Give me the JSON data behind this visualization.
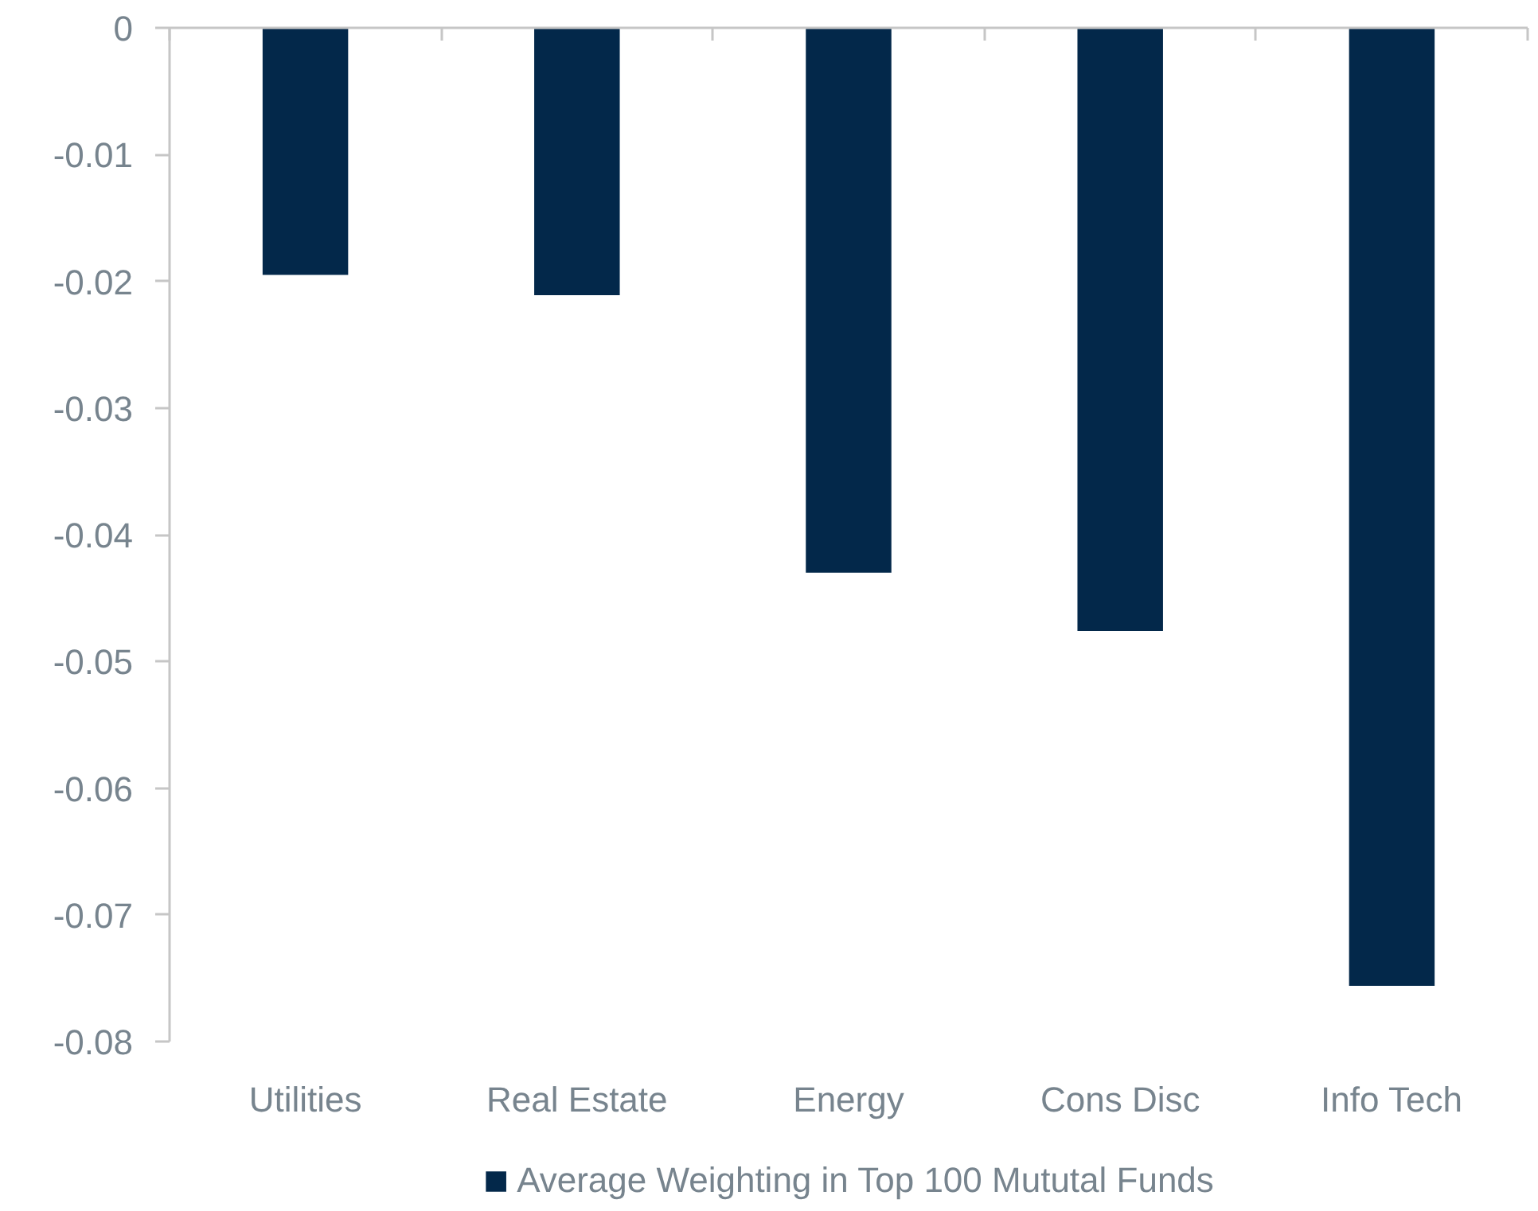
{
  "chart_data": {
    "type": "bar",
    "categories": [
      "Utilities",
      "Real Estate",
      "Energy",
      "Cons Disc",
      "Info Tech"
    ],
    "series": [
      {
        "name": "Average Weighting in Top 100 Mututal Funds",
        "color": "#03284a",
        "values": [
          -0.0195,
          -0.0211,
          -0.043,
          -0.0476,
          -0.0756
        ]
      }
    ],
    "ylim": [
      -0.08,
      0
    ],
    "yticks": [
      -0.08,
      -0.07,
      -0.06,
      -0.05,
      -0.04,
      -0.03,
      -0.02,
      -0.01,
      0
    ],
    "grid": false,
    "legend": "bottom"
  }
}
